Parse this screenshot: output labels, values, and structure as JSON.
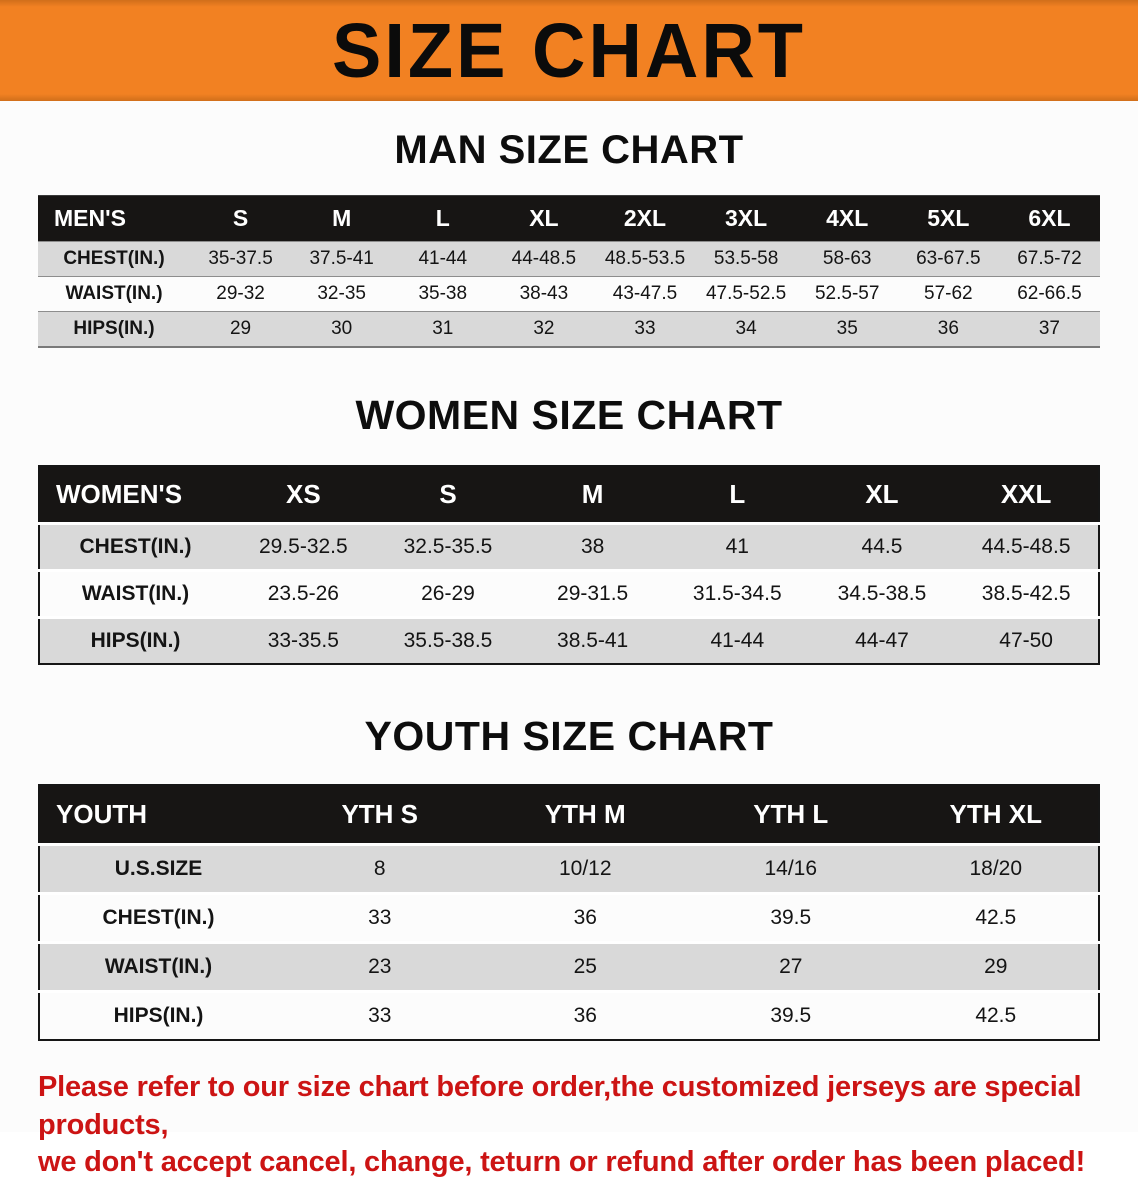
{
  "banner": {
    "title": "SIZE CHART"
  },
  "colors": {
    "banner_bg": "#f28122",
    "table_header_bg": "#171514",
    "table_header_text": "#ffffff",
    "row_alt_bg": "#d9d9d9",
    "disclaimer_text": "#cc1414"
  },
  "sections": [
    {
      "heading": "MAN SIZE CHART",
      "table": {
        "header": [
          "MEN'S",
          "S",
          "M",
          "L",
          "XL",
          "2XL",
          "3XL",
          "4XL",
          "5XL",
          "6XL"
        ],
        "rows": [
          [
            "CHEST(IN.)",
            "35-37.5",
            "37.5-41",
            "41-44",
            "44-48.5",
            "48.5-53.5",
            "53.5-58",
            "58-63",
            "63-67.5",
            "67.5-72"
          ],
          [
            "WAIST(IN.)",
            "29-32",
            "32-35",
            "35-38",
            "38-43",
            "43-47.5",
            "47.5-52.5",
            "52.5-57",
            "57-62",
            "62-66.5"
          ],
          [
            "HIPS(IN.)",
            "29",
            "30",
            "31",
            "32",
            "33",
            "34",
            "35",
            "36",
            "37"
          ]
        ]
      }
    },
    {
      "heading": "WOMEN SIZE CHART",
      "table": {
        "header": [
          "WOMEN'S",
          "XS",
          "S",
          "M",
          "L",
          "XL",
          "XXL"
        ],
        "rows": [
          [
            "CHEST(IN.)",
            "29.5-32.5",
            "32.5-35.5",
            "38",
            "41",
            "44.5",
            "44.5-48.5"
          ],
          [
            "WAIST(IN.)",
            "23.5-26",
            "26-29",
            "29-31.5",
            "31.5-34.5",
            "34.5-38.5",
            "38.5-42.5"
          ],
          [
            "HIPS(IN.)",
            "33-35.5",
            "35.5-38.5",
            "38.5-41",
            "41-44",
            "44-47",
            "47-50"
          ]
        ]
      }
    },
    {
      "heading": "YOUTH SIZE CHART",
      "table": {
        "header": [
          "YOUTH",
          "YTH S",
          "YTH M",
          "YTH L",
          "YTH XL"
        ],
        "rows": [
          [
            "U.S.SIZE",
            "8",
            "10/12",
            "14/16",
            "18/20"
          ],
          [
            "CHEST(IN.)",
            "33",
            "36",
            "39.5",
            "42.5"
          ],
          [
            "WAIST(IN.)",
            "23",
            "25",
            "27",
            "29"
          ],
          [
            "HIPS(IN.)",
            "33",
            "36",
            "39.5",
            "42.5"
          ]
        ]
      }
    }
  ],
  "disclaimer": {
    "line1": "Please refer to our size chart before order,the customized jerseys are special products,",
    "line2": "we don't accept cancel, change, teturn or refund after order has been placed!"
  }
}
